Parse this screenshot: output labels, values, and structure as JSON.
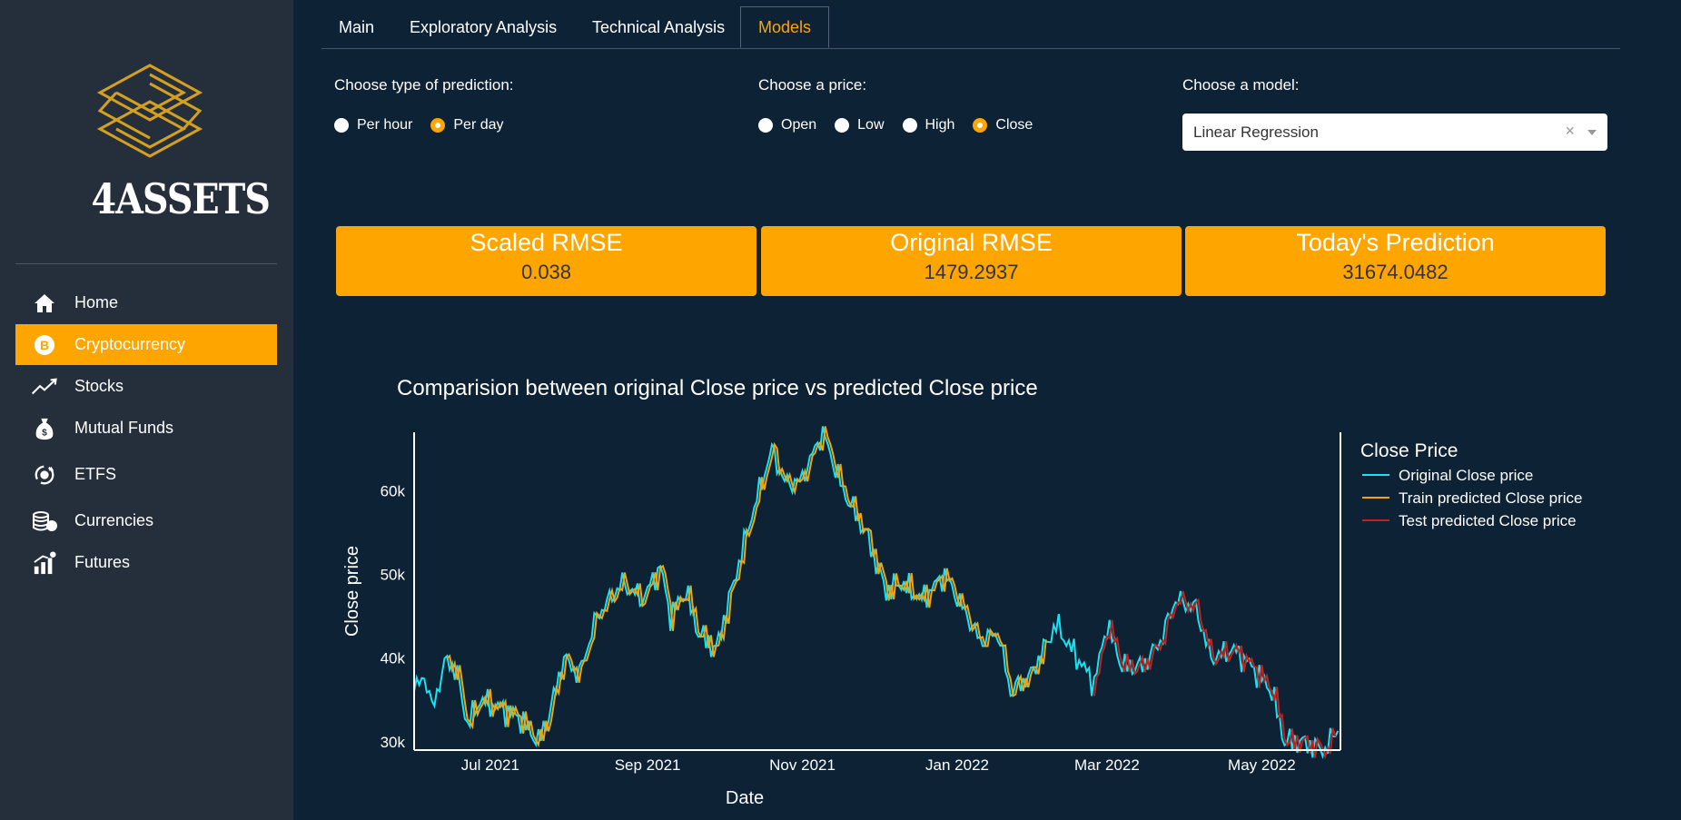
{
  "sidebar": {
    "logo_text": "4ASSETS",
    "items": [
      {
        "label": "Home",
        "icon": "home-icon"
      },
      {
        "label": "Cryptocurrency",
        "icon": "bitcoin-icon",
        "active": true
      },
      {
        "label": "Stocks",
        "icon": "trend-up-icon"
      },
      {
        "label": "Mutual Funds",
        "icon": "money-bag-icon"
      },
      {
        "label": "ETFS",
        "icon": "exchange-icon"
      },
      {
        "label": "Currencies",
        "icon": "coins-icon"
      },
      {
        "label": "Futures",
        "icon": "bar-growth-icon"
      }
    ],
    "accent": "#ffa500"
  },
  "tabs": [
    {
      "label": "Main"
    },
    {
      "label": "Exploratory Analysis"
    },
    {
      "label": "Technical Analysis"
    },
    {
      "label": "Models",
      "active": true
    }
  ],
  "controls": {
    "prediction_type": {
      "label": "Choose type of prediction:",
      "options": [
        "Per hour",
        "Per day"
      ],
      "selected": "Per day"
    },
    "price": {
      "label": "Choose a price:",
      "options": [
        "Open",
        "Low",
        "High",
        "Close"
      ],
      "selected": "Close"
    },
    "model": {
      "label": "Choose a model:",
      "value": "Linear Regression",
      "clear": "×"
    }
  },
  "metrics": [
    {
      "title": "Scaled RMSE",
      "value": "0.038"
    },
    {
      "title": "Original RMSE",
      "value": "1479.2937"
    },
    {
      "title": "Today's Prediction",
      "value": "31674.0482"
    }
  ],
  "chart_data": {
    "type": "line",
    "title": "Comparision between original Close price vs predicted Close price",
    "xlabel": "Date",
    "ylabel": "Close price",
    "xlim": [
      "2021-06-01",
      "2022-06-01"
    ],
    "ylim": [
      29000,
      67000
    ],
    "xticks": [
      "Jul 2021",
      "Sep 2021",
      "Nov 2021",
      "Jan 2022",
      "Mar 2022",
      "May 2022"
    ],
    "yticks": [
      "30k",
      "40k",
      "50k",
      "60k"
    ],
    "legend_title": "Close Price",
    "legend_position": "right",
    "anchors": [
      [
        "2021-06-01",
        36000
      ],
      [
        "2021-06-05",
        38000
      ],
      [
        "2021-06-08",
        34000
      ],
      [
        "2021-06-14",
        40000
      ],
      [
        "2021-06-18",
        38000
      ],
      [
        "2021-06-22",
        32000
      ],
      [
        "2021-06-27",
        35000
      ],
      [
        "2021-07-05",
        34000
      ],
      [
        "2021-07-12",
        33000
      ],
      [
        "2021-07-20",
        30000
      ],
      [
        "2021-07-24",
        33000
      ],
      [
        "2021-07-30",
        40000
      ],
      [
        "2021-08-05",
        38000
      ],
      [
        "2021-08-12",
        45000
      ],
      [
        "2021-08-22",
        49000
      ],
      [
        "2021-08-30",
        47000
      ],
      [
        "2021-09-06",
        51000
      ],
      [
        "2021-09-10",
        45000
      ],
      [
        "2021-09-16",
        48000
      ],
      [
        "2021-09-21",
        43000
      ],
      [
        "2021-09-28",
        41000
      ],
      [
        "2021-10-04",
        48000
      ],
      [
        "2021-10-12",
        57000
      ],
      [
        "2021-10-20",
        65000
      ],
      [
        "2021-10-25",
        61000
      ],
      [
        "2021-10-31",
        61000
      ],
      [
        "2021-11-09",
        67000
      ],
      [
        "2021-11-17",
        60000
      ],
      [
        "2021-11-26",
        55000
      ],
      [
        "2021-12-04",
        48000
      ],
      [
        "2021-12-10",
        49000
      ],
      [
        "2021-12-18",
        47000
      ],
      [
        "2021-12-27",
        50000
      ],
      [
        "2022-01-05",
        45000
      ],
      [
        "2022-01-10",
        42000
      ],
      [
        "2022-01-17",
        43000
      ],
      [
        "2022-01-22",
        36000
      ],
      [
        "2022-01-30",
        38000
      ],
      [
        "2022-02-09",
        44000
      ],
      [
        "2022-02-13",
        42000
      ],
      [
        "2022-02-24",
        37000
      ],
      [
        "2022-03-01",
        44000
      ],
      [
        "2022-03-07",
        39000
      ],
      [
        "2022-03-15",
        39000
      ],
      [
        "2022-03-22",
        42000
      ],
      [
        "2022-03-28",
        47000
      ],
      [
        "2022-04-05",
        46000
      ],
      [
        "2022-04-11",
        40000
      ],
      [
        "2022-04-20",
        41000
      ],
      [
        "2022-04-27",
        39000
      ],
      [
        "2022-05-05",
        36000
      ],
      [
        "2022-05-10",
        30000
      ],
      [
        "2022-05-16",
        30000
      ],
      [
        "2022-05-26",
        29000
      ],
      [
        "2022-05-31",
        31700
      ]
    ],
    "series": [
      {
        "name": "Original Close price",
        "color": "#17e3f2",
        "from": "2021-06-01",
        "to": "2022-05-31",
        "offset_days": 0
      },
      {
        "name": "Train predicted Close price",
        "color": "#f2a30f",
        "from": "2021-06-14",
        "to": "2022-02-05",
        "offset_days": 1
      },
      {
        "name": "Test predicted Close price",
        "color": "#c0221e",
        "from": "2022-02-24",
        "to": "2022-05-30",
        "offset_days": 1
      }
    ]
  }
}
